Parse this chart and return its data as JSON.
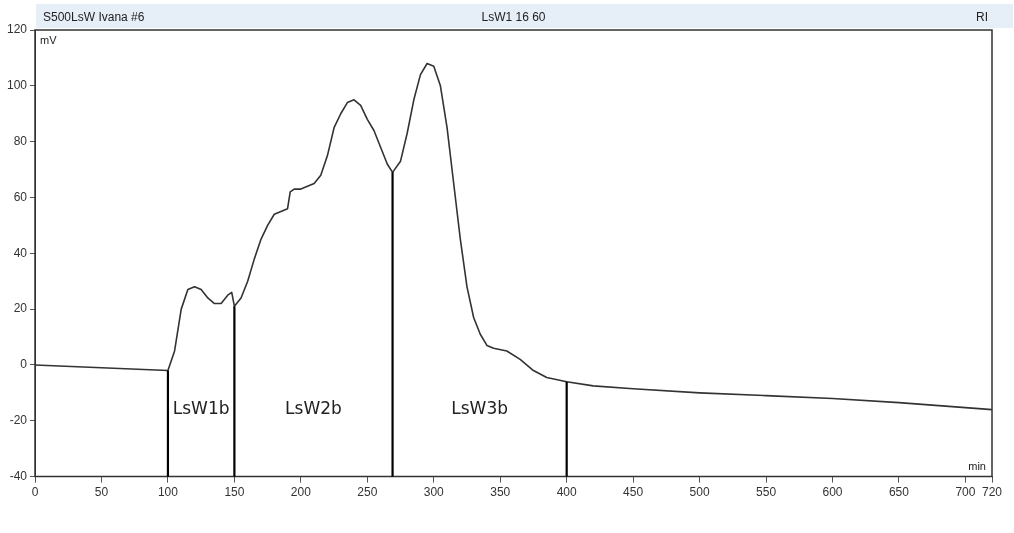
{
  "chart_data": {
    "type": "line",
    "title": "S500LsW Ivana #6",
    "subtitle": "LsW1 16 60",
    "xlabel": "min",
    "ylabel": "mV",
    "annotations": [
      "RI",
      "LsW1b",
      "LsW2b",
      "LsW3b"
    ],
    "x": [
      0,
      100,
      105,
      110,
      115,
      120,
      125,
      130,
      135,
      140,
      145,
      148,
      150,
      155,
      160,
      165,
      170,
      175,
      180,
      185,
      190,
      192,
      195,
      200,
      210,
      215,
      220,
      225,
      230,
      235,
      240,
      245,
      250,
      255,
      260,
      265,
      269,
      275,
      280,
      285,
      290,
      295,
      300,
      305,
      310,
      315,
      320,
      325,
      330,
      335,
      340,
      345,
      355,
      365,
      375,
      385,
      400,
      420,
      450,
      500,
      550,
      600,
      650,
      720
    ],
    "series": [
      {
        "color": "#333333",
        "values": [
          0,
          -2,
          5,
          20,
          27,
          28,
          27,
          24,
          22,
          22,
          25,
          26,
          21,
          24,
          30,
          38,
          45,
          50,
          54,
          55,
          56,
          62,
          63,
          63,
          65,
          68,
          75,
          85,
          90,
          94,
          95,
          93,
          88,
          84,
          78,
          72,
          69,
          73,
          83,
          95,
          104,
          108,
          107,
          100,
          85,
          65,
          45,
          28,
          17,
          11,
          7,
          6,
          5,
          2,
          -2,
          -4.5,
          -6,
          -7.5,
          -8.5,
          -10,
          -11,
          -12,
          -13.5,
          -16
        ]
      }
    ],
    "ref_lines": [
      {
        "axis": "x",
        "value": 100,
        "color": "#000000"
      },
      {
        "axis": "x",
        "value": 150,
        "color": "#000000"
      },
      {
        "axis": "x",
        "value": 269,
        "color": "#000000"
      },
      {
        "axis": "x",
        "value": 400,
        "color": "#000000"
      }
    ],
    "xlim": [
      0,
      720
    ],
    "xticks": [
      0,
      50,
      100,
      150,
      200,
      250,
      300,
      350,
      400,
      450,
      500,
      550,
      600,
      650,
      700,
      720
    ],
    "ylim": [
      -40,
      120
    ],
    "yticks": [
      -40,
      -20,
      0,
      20,
      40,
      60,
      80,
      100,
      120
    ],
    "grid": false,
    "legend": false,
    "marker": "none",
    "line_style": "solid"
  }
}
